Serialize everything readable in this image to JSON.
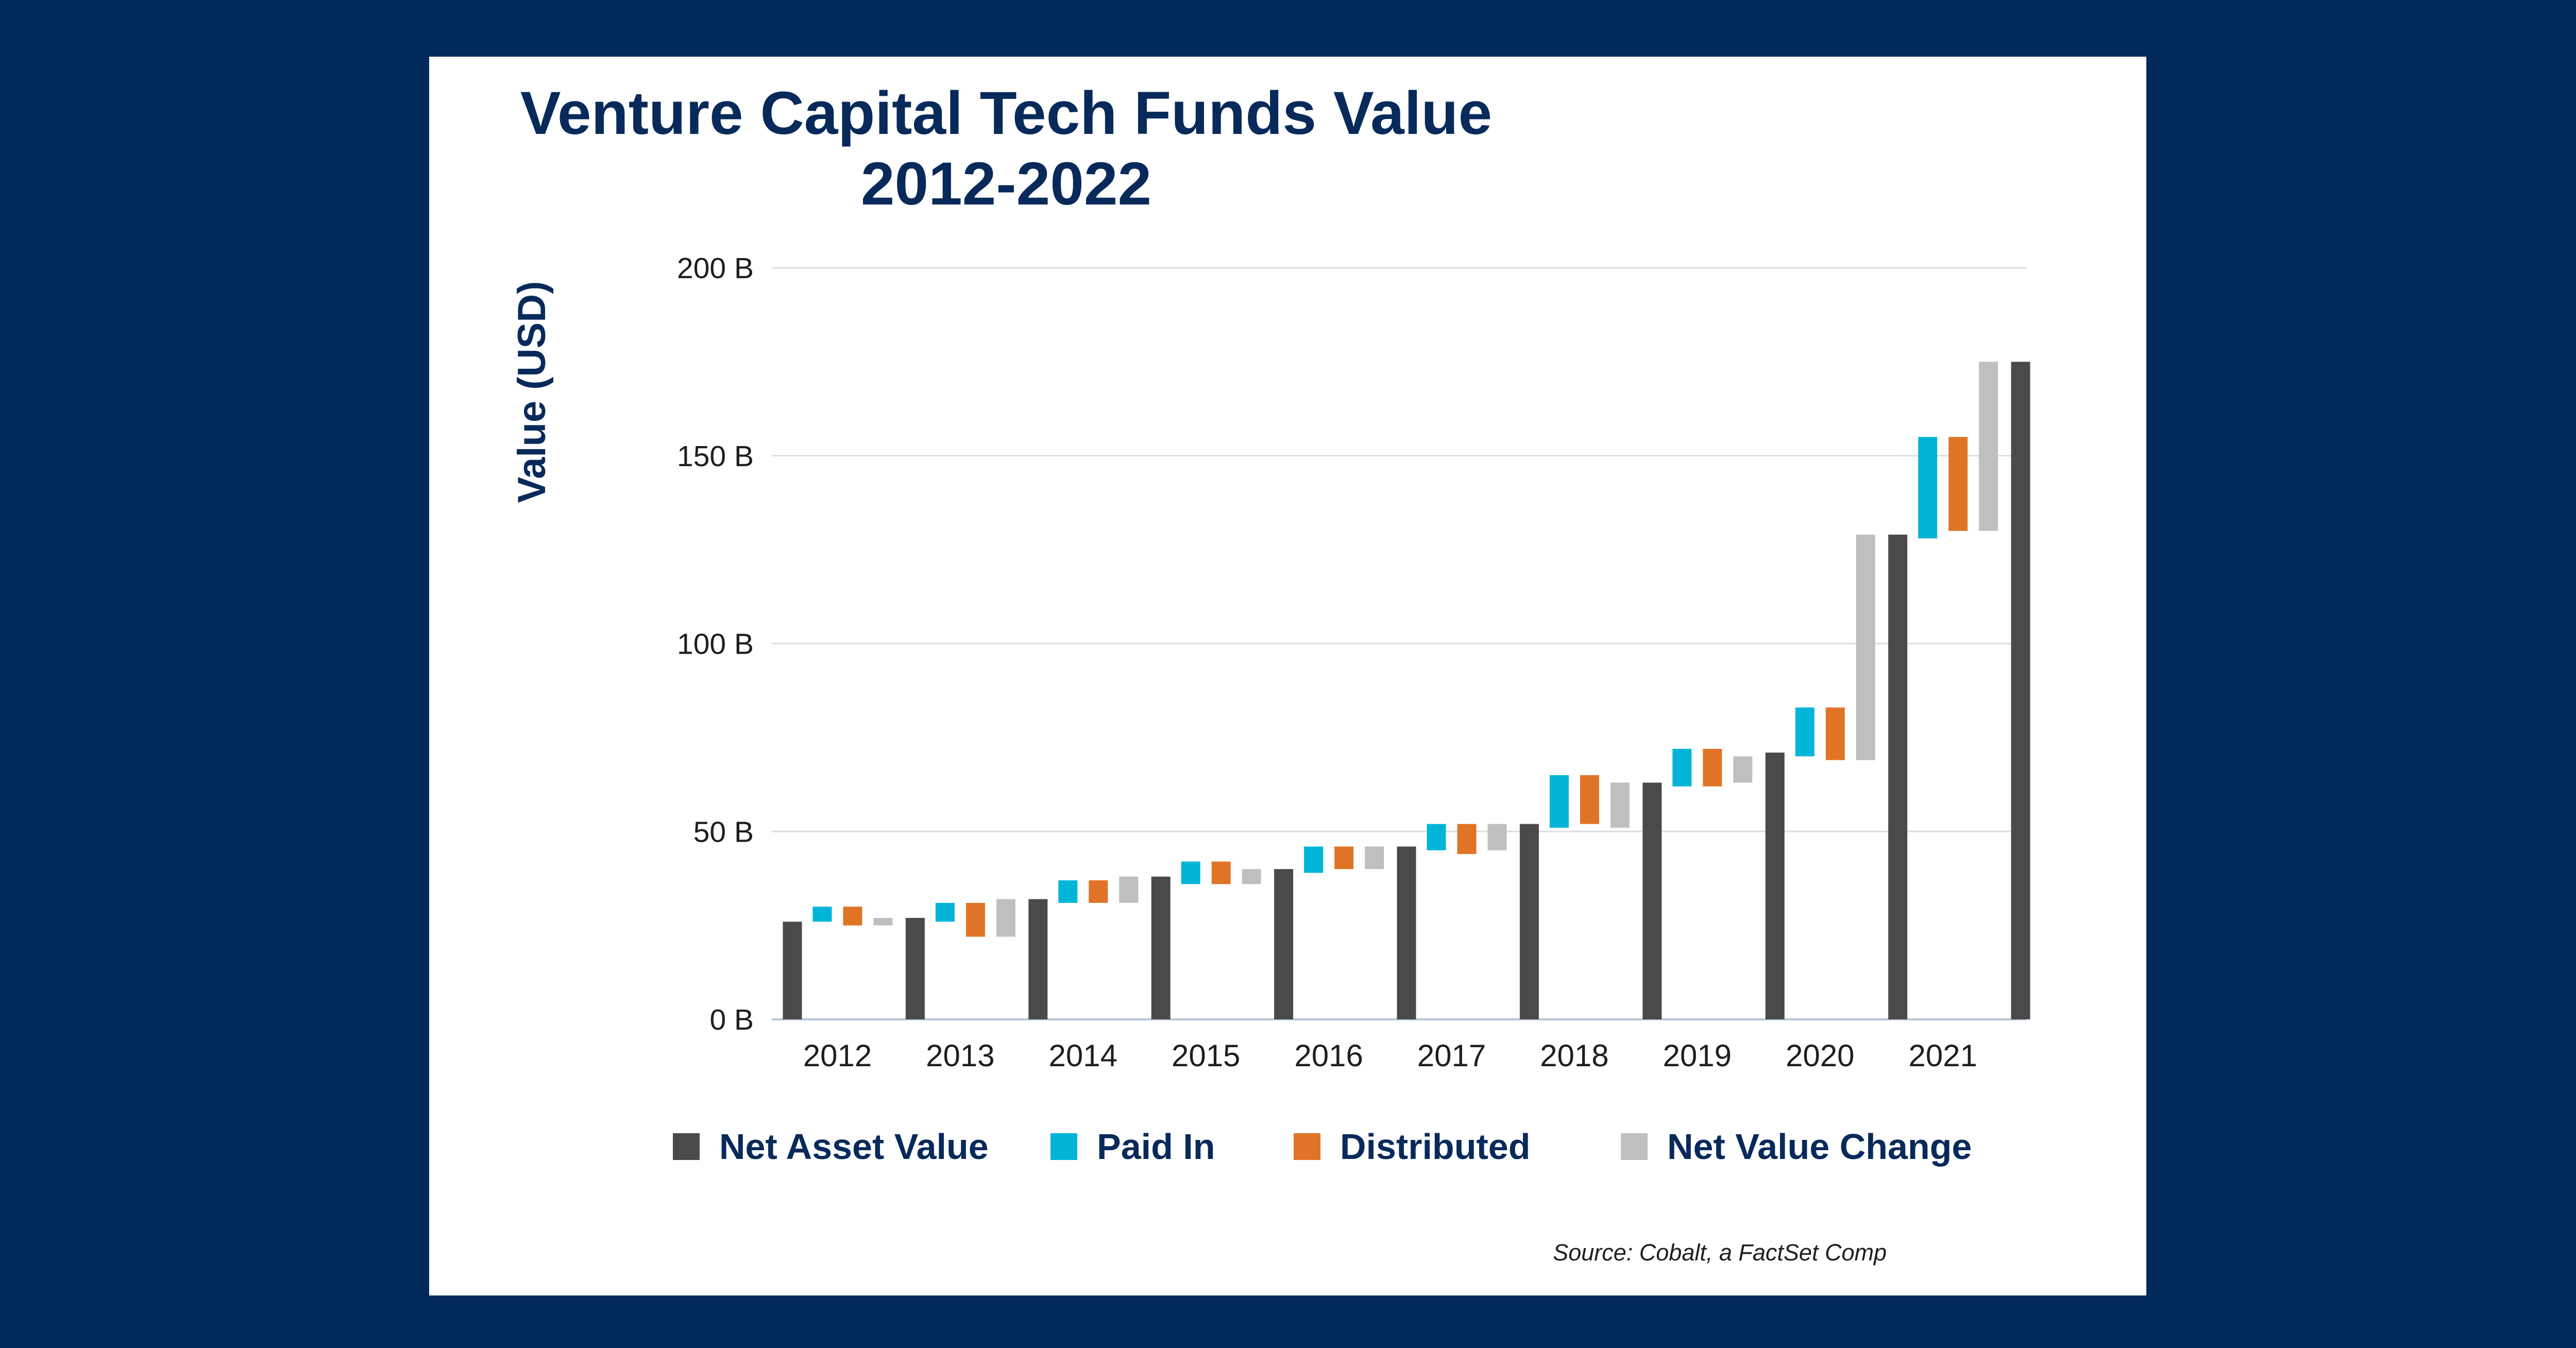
{
  "chart_data": {
    "type": "waterfall",
    "title": [
      "Venture Capital Tech Funds Value",
      "2012-2022"
    ],
    "ylabel": "Value (USD)",
    "ylim": [
      0,
      200
    ],
    "yticks": [
      0,
      50,
      100,
      150,
      200
    ],
    "ytick_labels": [
      "0 B",
      "50 B",
      "100 B",
      "150 B",
      "200 B"
    ],
    "categories": [
      "2012",
      "2013",
      "2014",
      "2015",
      "2016",
      "2017",
      "2018",
      "2019",
      "2020",
      "2021"
    ],
    "grid": true,
    "legend_placement": "bottom",
    "series": [
      {
        "name": "Net Asset Value",
        "color": "#4A4A4A"
      },
      {
        "name": "Paid In",
        "color": "#00B5D8"
      },
      {
        "name": "Distributed",
        "color": "#E07426"
      },
      {
        "name": "Net Value Change",
        "color": "#BFBFBF"
      }
    ],
    "groups": [
      {
        "year": "2012",
        "nav": 26,
        "paid_in": [
          26,
          30
        ],
        "distributed": [
          25,
          30
        ],
        "net_change": [
          25,
          27
        ]
      },
      {
        "year": "2013",
        "nav": 27,
        "paid_in": [
          26,
          31
        ],
        "distributed": [
          22,
          31
        ],
        "net_change": [
          22,
          32
        ]
      },
      {
        "year": "2014",
        "nav": 32,
        "paid_in": [
          31,
          37
        ],
        "distributed": [
          31,
          37
        ],
        "net_change": [
          31,
          38
        ]
      },
      {
        "year": "2015",
        "nav": 38,
        "paid_in": [
          36,
          42
        ],
        "distributed": [
          36,
          42
        ],
        "net_change": [
          36,
          40
        ]
      },
      {
        "year": "2016",
        "nav": 40,
        "paid_in": [
          39,
          46
        ],
        "distributed": [
          40,
          46
        ],
        "net_change": [
          40,
          46
        ]
      },
      {
        "year": "2017",
        "nav": 46,
        "paid_in": [
          45,
          52
        ],
        "distributed": [
          44,
          52
        ],
        "net_change": [
          45,
          52
        ]
      },
      {
        "year": "2018",
        "nav": 52,
        "paid_in": [
          51,
          65
        ],
        "distributed": [
          52,
          65
        ],
        "net_change": [
          51,
          63
        ]
      },
      {
        "year": "2019",
        "nav": 63,
        "paid_in": [
          62,
          72
        ],
        "distributed": [
          62,
          72
        ],
        "net_change": [
          63,
          70
        ]
      },
      {
        "year": "2020",
        "nav": 71,
        "paid_in": [
          70,
          83
        ],
        "distributed": [
          69,
          83
        ],
        "net_change": [
          69,
          129
        ]
      },
      {
        "year": "2021",
        "nav": 129,
        "paid_in": [
          128,
          155
        ],
        "distributed": [
          130,
          155
        ],
        "net_change": [
          130,
          175
        ]
      }
    ],
    "final_bar": {
      "nav": 175
    },
    "source": "Source: Cobalt, a FactSet Comp"
  }
}
